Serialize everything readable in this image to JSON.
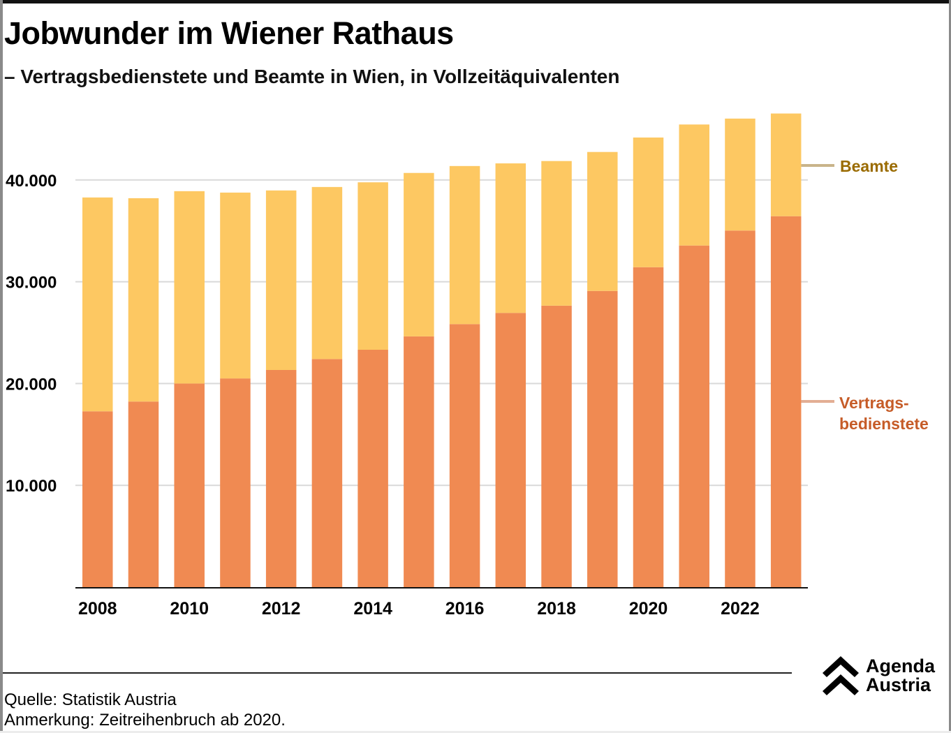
{
  "header": {
    "title": "Jobwunder im Wiener Rathaus",
    "subtitle": "– Vertragsbedienstete und Beamte in Wien, in Vollzeitäquivalenten"
  },
  "footer": {
    "source": "Quelle: Statistik Austria",
    "note": "Anmerkung: Zeitreihenbruch ab 2020.",
    "logo_line1": "Agenda",
    "logo_line2": "Austria",
    "logo_icon": "double-chevron-up-icon"
  },
  "colors": {
    "beamte": "#FDC862",
    "vertragsbedienstete": "#F08A52",
    "beamte_label": "#9A6B00",
    "vertragsbedienstete_label": "#C65C28",
    "beamte_leader": "#C9B48A",
    "vertragsbedienstete_leader": "#E3AE94",
    "grid": "#D9D9D9",
    "axis": "#111111"
  },
  "chart_data": {
    "type": "bar",
    "stacked": true,
    "title": "Jobwunder im Wiener Rathaus",
    "subtitle": "Vertragsbedienstete und Beamte in Wien, in Vollzeitäquivalenten",
    "xlabel": "",
    "ylabel": "",
    "categories": [
      "2008",
      "2009",
      "2010",
      "2011",
      "2012",
      "2013",
      "2014",
      "2015",
      "2016",
      "2017",
      "2018",
      "2019",
      "2020",
      "2021",
      "2022",
      "2023"
    ],
    "x_tick_labels": [
      "2008",
      "2010",
      "2012",
      "2014",
      "2016",
      "2018",
      "2020",
      "2022"
    ],
    "y_ticks": [
      10000,
      20000,
      30000,
      40000
    ],
    "y_tick_labels": [
      "10.000",
      "20.000",
      "30.000",
      "40.000"
    ],
    "ylim": [
      0,
      47000
    ],
    "grid": true,
    "legend_placement": "right (direct labels)",
    "series": [
      {
        "name": "Vertragsbedienstete",
        "label_lines": [
          "Vertrags-",
          "bedienstete"
        ],
        "values": [
          17270,
          18230,
          20000,
          20500,
          21330,
          22410,
          23320,
          24630,
          25840,
          26940,
          27650,
          29100,
          31430,
          33560,
          35030,
          36440
        ]
      },
      {
        "name": "Beamte",
        "label_lines": [
          "Beamte"
        ],
        "values": [
          21010,
          19980,
          18900,
          18260,
          17640,
          16900,
          16450,
          16060,
          15530,
          14690,
          14210,
          13650,
          12740,
          11890,
          11000,
          10090
        ]
      }
    ],
    "totals": [
      38280,
      38210,
      38900,
      38760,
      38970,
      39310,
      39770,
      40690,
      41370,
      41630,
      41860,
      42750,
      44170,
      45450,
      46030,
      46530
    ]
  }
}
